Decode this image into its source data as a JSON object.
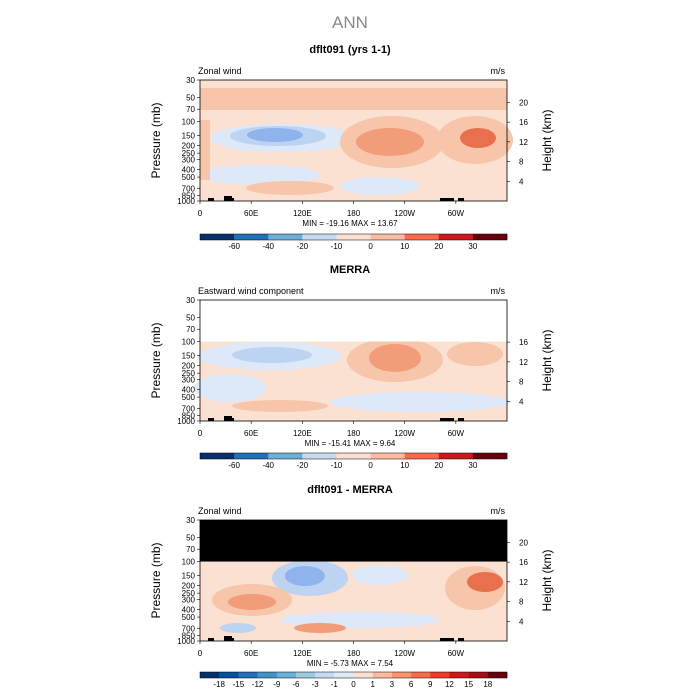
{
  "page_title": "ANN",
  "colorbar_colors_wind": [
    "#08306b",
    "#08519c",
    "#2171b5",
    "#4292c6",
    "#6baed6",
    "#9ecae1",
    "#c6dbef",
    "#deebf7",
    "#fde0d2",
    "#fcbba1",
    "#fc9272",
    "#fb6a4a",
    "#ef3b2c",
    "#cb181d",
    "#a50f15",
    "#67000d"
  ],
  "colors": {
    "neg1": "#dde8f8",
    "neg2": "#bcd3f2",
    "neg3": "#8fb3ec",
    "neg4": "#5f8fe2",
    "pos1": "#fbe1d2",
    "pos2": "#f7c5a9",
    "pos3": "#f29c79",
    "pos4": "#e8704d",
    "mask": "#000000"
  },
  "chart_data": [
    {
      "type": "heatmap",
      "title": "dflt091 (yrs 1-1)",
      "field_label": "Zonal wind",
      "units": "m/s",
      "ylabel": "Pressure (mb)",
      "ylabel_right": "Height (km)",
      "x_ticks": [
        "0",
        "60E",
        "120E",
        "180",
        "120W",
        "60W"
      ],
      "y_ticks": [
        "30",
        "50",
        "70",
        "100",
        "150",
        "200",
        "250",
        "300",
        "400",
        "500",
        "700",
        "850",
        "1000"
      ],
      "height_ticks": [
        "20",
        "16",
        "12",
        "8",
        "4"
      ],
      "stats": "MIN = -19.16  MAX = 13.67",
      "min": -19.16,
      "max": 13.67,
      "colorbar_labels": [
        "-60",
        "-40",
        "-20",
        "-10",
        "0",
        "10",
        "20",
        "30"
      ],
      "colorbar_ticks": [
        -60,
        -40,
        -20,
        -10,
        0,
        10,
        20,
        30
      ]
    },
    {
      "type": "heatmap",
      "title": "MERRA",
      "field_label": "Eastward wind component",
      "units": "m/s",
      "ylabel": "Pressure (mb)",
      "ylabel_right": "Height (km)",
      "x_ticks": [
        "0",
        "60E",
        "120E",
        "180",
        "120W",
        "60W"
      ],
      "y_ticks": [
        "30",
        "50",
        "70",
        "100",
        "150",
        "200",
        "250",
        "300",
        "400",
        "500",
        "700",
        "850",
        "1000"
      ],
      "height_ticks": [
        "16",
        "12",
        "8",
        "4"
      ],
      "stats": "MIN = -15.41  MAX =  9.64",
      "min": -15.41,
      "max": 9.64,
      "colorbar_labels": [
        "-60",
        "-40",
        "-20",
        "-10",
        "0",
        "10",
        "20",
        "30"
      ],
      "colorbar_ticks": [
        -60,
        -40,
        -20,
        -10,
        0,
        10,
        20,
        30
      ]
    },
    {
      "type": "heatmap",
      "title": "dflt091 - MERRA",
      "field_label": "Zonal wind",
      "units": "m/s",
      "ylabel": "Pressure (mb)",
      "ylabel_right": "Height (km)",
      "x_ticks": [
        "0",
        "60E",
        "120E",
        "180",
        "120W",
        "60W"
      ],
      "y_ticks": [
        "30",
        "50",
        "70",
        "100",
        "150",
        "200",
        "250",
        "300",
        "400",
        "500",
        "700",
        "850",
        "1000"
      ],
      "height_ticks": [
        "20",
        "16",
        "12",
        "8",
        "4"
      ],
      "stats": "MIN = -5.73  MAX =  7.54",
      "min": -5.73,
      "max": 7.54,
      "colorbar_labels": [
        "-18",
        "-15",
        "-12",
        "-9",
        "-6",
        "-3",
        "-1",
        "0",
        "1",
        "3",
        "6",
        "9",
        "12",
        "15",
        "18"
      ],
      "colorbar_ticks": [
        -18,
        -15,
        -12,
        -9,
        -6,
        -3,
        -1,
        0,
        1,
        3,
        6,
        9,
        12,
        15,
        18
      ]
    }
  ]
}
